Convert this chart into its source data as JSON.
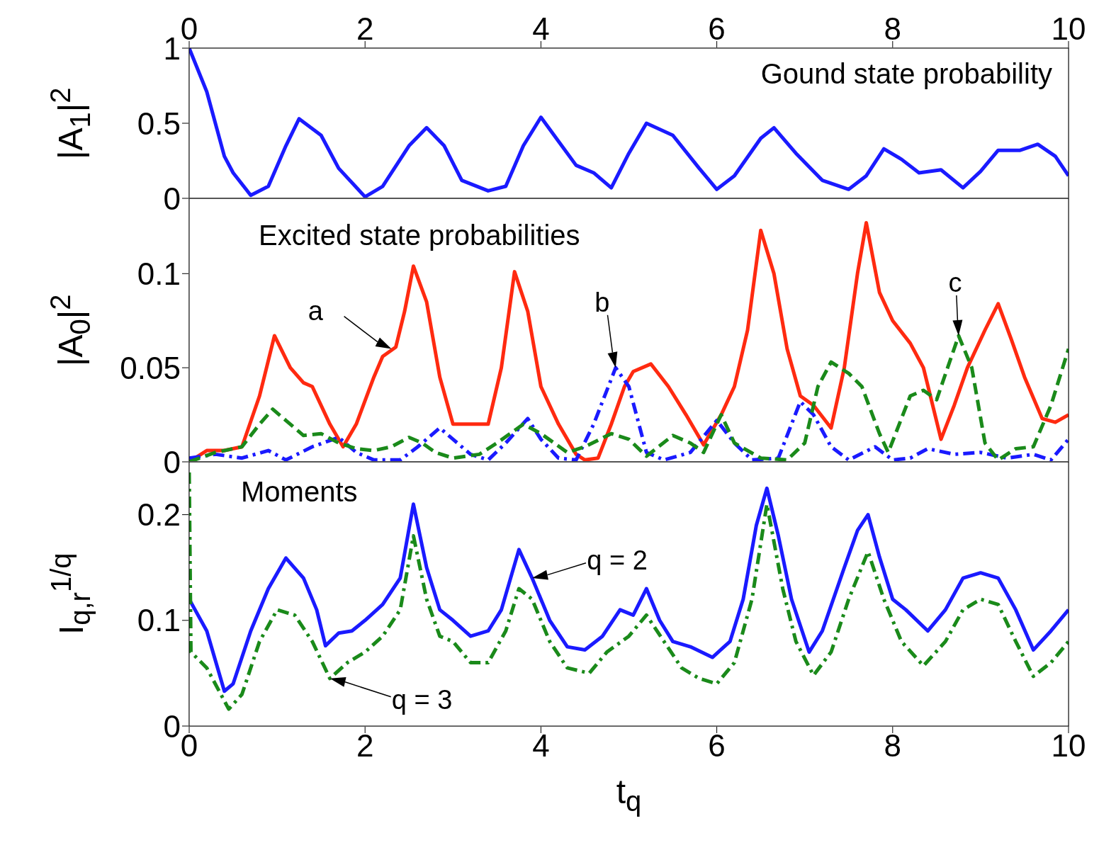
{
  "chart_data": [
    {
      "type": "line",
      "title": "Gound state probability",
      "ylabel": "|A$_{1}$|$^{2}$",
      "xlim": [
        0,
        10
      ],
      "xticks": [
        0,
        2,
        4,
        6,
        8,
        10
      ],
      "ylim": [
        0,
        1
      ],
      "yticks": [
        0,
        0.5,
        1
      ],
      "grid": false,
      "legend": false,
      "series": [
        {
          "color": "#1a1aff",
          "line_style": "solid",
          "x": [
            0,
            0.2,
            0.4,
            0.5,
            0.7,
            0.9,
            1.1,
            1.25,
            1.5,
            1.7,
            2.0,
            2.2,
            2.5,
            2.7,
            2.9,
            3.1,
            3.4,
            3.6,
            3.8,
            4.0,
            4.2,
            4.4,
            4.6,
            4.8,
            5.0,
            5.2,
            5.5,
            5.8,
            6.0,
            6.2,
            6.5,
            6.65,
            6.9,
            7.2,
            7.5,
            7.7,
            7.9,
            8.1,
            8.3,
            8.55,
            8.8,
            9.0,
            9.2,
            9.45,
            9.65,
            9.85,
            10
          ],
          "values": [
            1.0,
            0.71,
            0.28,
            0.17,
            0.02,
            0.08,
            0.35,
            0.53,
            0.42,
            0.2,
            0.01,
            0.08,
            0.35,
            0.47,
            0.35,
            0.12,
            0.05,
            0.08,
            0.35,
            0.54,
            0.38,
            0.22,
            0.17,
            0.07,
            0.3,
            0.5,
            0.42,
            0.2,
            0.06,
            0.15,
            0.4,
            0.47,
            0.3,
            0.12,
            0.06,
            0.15,
            0.33,
            0.26,
            0.17,
            0.19,
            0.07,
            0.18,
            0.32,
            0.32,
            0.36,
            0.28,
            0.15
          ]
        }
      ]
    },
    {
      "type": "line",
      "title": "Excited state probabilities",
      "ylabel": "|A$_{0}$|$^{2}$",
      "xlim": [
        0,
        10
      ],
      "xticks": [
        0,
        2,
        4,
        6,
        8,
        10
      ],
      "ylim": [
        0,
        0.14
      ],
      "yticks": [
        0,
        0.05,
        0.1
      ],
      "tick_labels": "y",
      "grid": false,
      "legend": false,
      "annotations": [
        {
          "text": "a",
          "x": 2.3,
          "y": 0.06
        },
        {
          "text": "b",
          "x": 4.85,
          "y": 0.05
        },
        {
          "text": "c",
          "x": 8.75,
          "y": 0.067
        }
      ],
      "series": [
        {
          "color": "#ff2a10",
          "line_style": "solid",
          "x": [
            0,
            0.2,
            0.4,
            0.6,
            0.8,
            0.97,
            1.15,
            1.3,
            1.4,
            1.6,
            1.75,
            1.9,
            2.1,
            2.2,
            2.35,
            2.45,
            2.55,
            2.7,
            2.85,
            3.0,
            3.2,
            3.4,
            3.55,
            3.7,
            3.85,
            4.0,
            4.2,
            4.4,
            4.5,
            4.65,
            4.8,
            4.95,
            5.05,
            5.25,
            5.45,
            5.65,
            5.85,
            6.05,
            6.2,
            6.35,
            6.5,
            6.65,
            6.8,
            6.95,
            7.1,
            7.3,
            7.45,
            7.6,
            7.7,
            7.85,
            8.0,
            8.2,
            8.35,
            8.55,
            8.7,
            8.85,
            9.05,
            9.2,
            9.35,
            9.5,
            9.7,
            9.85,
            10
          ],
          "values": [
            0,
            0.006,
            0.006,
            0.008,
            0.035,
            0.067,
            0.05,
            0.042,
            0.04,
            0.02,
            0.008,
            0.02,
            0.045,
            0.056,
            0.061,
            0.08,
            0.104,
            0.085,
            0.045,
            0.02,
            0.02,
            0.02,
            0.05,
            0.101,
            0.08,
            0.04,
            0.02,
            0.004,
            0.001,
            0.002,
            0.02,
            0.04,
            0.048,
            0.052,
            0.04,
            0.025,
            0.009,
            0.025,
            0.04,
            0.07,
            0.123,
            0.1,
            0.06,
            0.035,
            0.03,
            0.018,
            0.05,
            0.1,
            0.127,
            0.09,
            0.075,
            0.063,
            0.05,
            0.012,
            0.03,
            0.05,
            0.07,
            0.084,
            0.065,
            0.045,
            0.023,
            0.021,
            0.025
          ]
        },
        {
          "color": "#1a1aff",
          "line_style": "dashdot",
          "x": [
            0,
            0.3,
            0.6,
            0.9,
            1.1,
            1.4,
            1.7,
            1.9,
            2.1,
            2.4,
            2.6,
            2.85,
            3.0,
            3.2,
            3.4,
            3.6,
            3.85,
            4.0,
            4.2,
            4.4,
            4.6,
            4.85,
            5.0,
            5.2,
            5.4,
            5.7,
            6.0,
            6.2,
            6.4,
            6.7,
            6.95,
            7.1,
            7.3,
            7.5,
            7.8,
            8.0,
            8.2,
            8.4,
            8.7,
            9.0,
            9.3,
            9.6,
            9.8,
            10
          ],
          "values": [
            0.002,
            0.004,
            0.002,
            0.006,
            0.001,
            0.008,
            0.013,
            0.005,
            0.001,
            0.001,
            0.008,
            0.018,
            0.012,
            0.004,
            0.001,
            0.01,
            0.023,
            0.012,
            0.002,
            0.001,
            0.02,
            0.05,
            0.04,
            0.005,
            0.001,
            0.005,
            0.022,
            0.01,
            0.001,
            0.002,
            0.032,
            0.025,
            0.008,
            0.001,
            0.008,
            0.001,
            0.002,
            0.007,
            0.004,
            0.005,
            0.002,
            0.004,
            0.001,
            0.012
          ]
        },
        {
          "color": "#1a8a1a",
          "line_style": "dashed",
          "x": [
            0,
            0.3,
            0.6,
            0.8,
            0.95,
            1.1,
            1.3,
            1.5,
            1.7,
            1.9,
            2.1,
            2.3,
            2.5,
            2.65,
            2.8,
            3.0,
            3.3,
            3.5,
            3.8,
            4.0,
            4.3,
            4.5,
            4.8,
            5.0,
            5.2,
            5.5,
            5.7,
            5.85,
            6.05,
            6.2,
            6.5,
            6.8,
            7.0,
            7.15,
            7.3,
            7.5,
            7.65,
            7.85,
            7.95,
            8.2,
            8.35,
            8.5,
            8.75,
            8.9,
            9.05,
            9.2,
            9.4,
            9.6,
            9.8,
            10
          ],
          "values": [
            0,
            0.005,
            0.008,
            0.02,
            0.028,
            0.022,
            0.014,
            0.015,
            0.01,
            0.007,
            0.006,
            0.008,
            0.013,
            0.01,
            0.005,
            0.002,
            0.004,
            0.01,
            0.02,
            0.015,
            0.005,
            0.008,
            0.015,
            0.012,
            0.003,
            0.014,
            0.01,
            0.005,
            0.025,
            0.01,
            0.002,
            0.001,
            0.01,
            0.04,
            0.053,
            0.047,
            0.04,
            0.015,
            0.005,
            0.035,
            0.038,
            0.033,
            0.067,
            0.05,
            0.01,
            0.001,
            0.007,
            0.008,
            0.03,
            0.06
          ]
        }
      ]
    },
    {
      "type": "line",
      "title": "Moments",
      "xlabel": "t$_{q}$",
      "ylabel": "I$_{q,r}$$^{1/q}$",
      "xlim": [
        0,
        10
      ],
      "xticks": [
        0,
        2,
        4,
        6,
        8,
        10
      ],
      "ylim": [
        0,
        0.25
      ],
      "yticks": [
        0,
        0.1,
        0.2
      ],
      "grid": false,
      "legend": false,
      "annotations": [
        {
          "text": "q = 2",
          "x": 3.9,
          "y": 0.14
        },
        {
          "text": "q = 3",
          "x": 1.6,
          "y": 0.045
        }
      ],
      "series": [
        {
          "color": "#1a1aff",
          "line_style": "solid",
          "x": [
            0,
            0.2,
            0.4,
            0.5,
            0.7,
            0.9,
            1.1,
            1.3,
            1.45,
            1.55,
            1.7,
            1.85,
            2.0,
            2.2,
            2.4,
            2.55,
            2.7,
            2.85,
            3.0,
            3.2,
            3.4,
            3.55,
            3.75,
            3.9,
            4.1,
            4.3,
            4.5,
            4.7,
            4.9,
            5.05,
            5.2,
            5.35,
            5.5,
            5.7,
            5.95,
            6.15,
            6.3,
            6.45,
            6.57,
            6.7,
            6.85,
            7.05,
            7.2,
            7.45,
            7.6,
            7.72,
            7.85,
            8.0,
            8.15,
            8.4,
            8.6,
            8.8,
            9.0,
            9.2,
            9.4,
            9.6,
            9.8,
            10
          ],
          "values": [
            0.12,
            0.09,
            0.033,
            0.04,
            0.09,
            0.13,
            0.159,
            0.14,
            0.11,
            0.076,
            0.088,
            0.09,
            0.1,
            0.115,
            0.14,
            0.21,
            0.15,
            0.11,
            0.1,
            0.085,
            0.09,
            0.11,
            0.167,
            0.14,
            0.1,
            0.075,
            0.072,
            0.085,
            0.11,
            0.105,
            0.13,
            0.1,
            0.08,
            0.075,
            0.065,
            0.08,
            0.12,
            0.19,
            0.225,
            0.18,
            0.12,
            0.07,
            0.09,
            0.15,
            0.185,
            0.2,
            0.16,
            0.12,
            0.11,
            0.09,
            0.11,
            0.14,
            0.145,
            0.14,
            0.11,
            0.072,
            0.09,
            0.11
          ]
        },
        {
          "color": "#1a8a1a",
          "line_style": "dashdot",
          "x": [
            0,
            0.02,
            0.2,
            0.45,
            0.6,
            0.8,
            1.0,
            1.2,
            1.4,
            1.6,
            1.8,
            2.0,
            2.2,
            2.4,
            2.55,
            2.7,
            2.85,
            3.0,
            3.2,
            3.4,
            3.6,
            3.75,
            3.9,
            4.1,
            4.3,
            4.55,
            4.75,
            5.0,
            5.2,
            5.4,
            5.6,
            5.8,
            6.0,
            6.2,
            6.4,
            6.57,
            6.75,
            6.9,
            7.1,
            7.3,
            7.5,
            7.72,
            7.9,
            8.1,
            8.35,
            8.6,
            8.8,
            9.0,
            9.2,
            9.4,
            9.6,
            9.8,
            10
          ],
          "values": [
            0.24,
            0.07,
            0.055,
            0.016,
            0.03,
            0.08,
            0.11,
            0.105,
            0.08,
            0.045,
            0.06,
            0.07,
            0.085,
            0.11,
            0.18,
            0.12,
            0.085,
            0.08,
            0.06,
            0.06,
            0.09,
            0.13,
            0.12,
            0.08,
            0.055,
            0.05,
            0.07,
            0.085,
            0.105,
            0.08,
            0.055,
            0.045,
            0.04,
            0.06,
            0.12,
            0.21,
            0.13,
            0.08,
            0.048,
            0.07,
            0.12,
            0.165,
            0.12,
            0.08,
            0.057,
            0.08,
            0.11,
            0.12,
            0.115,
            0.08,
            0.047,
            0.06,
            0.08
          ]
        }
      ]
    }
  ]
}
